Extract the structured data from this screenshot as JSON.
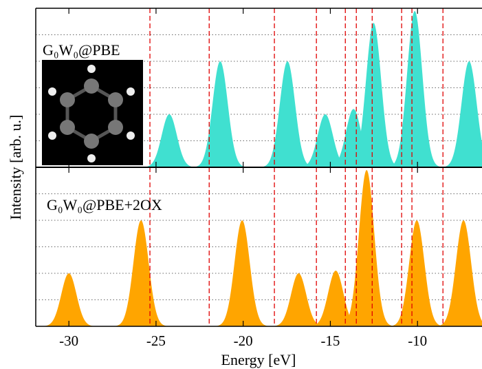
{
  "chart_data": [
    {
      "type": "peaks",
      "label": "G₀W₀@PBE",
      "color": "#40e0d0",
      "ylabel": "Intensity [arb. u.]",
      "x": [
        -24.24,
        -21.32,
        -17.46,
        -15.29,
        -13.67,
        -12.52,
        -10.16,
        -7.04
      ],
      "values": [
        2.0,
        4.0,
        4.0,
        2.0,
        2.2,
        5.45,
        5.9,
        4.0
      ],
      "ylim": [
        0,
        6
      ],
      "yticks": [
        1,
        2,
        3,
        4,
        5
      ],
      "grid": true
    },
    {
      "type": "peaks",
      "label": "G₀W₀@PBE+2OX",
      "color": "#ffa500",
      "xlabel": "Energy [eV]",
      "x": [
        -30.0,
        -25.86,
        -20.06,
        -16.82,
        -14.69,
        -12.92,
        -10.04,
        -7.36
      ],
      "values": [
        2.0,
        4.0,
        4.0,
        2.0,
        2.1,
        5.9,
        4.0,
        4.0
      ],
      "ylim": [
        0,
        6
      ],
      "yticks": [
        1,
        2,
        3,
        4,
        5
      ],
      "grid": true,
      "xlim": [
        -31.9,
        -6.3
      ],
      "xticks": [
        -30,
        -25,
        -20,
        -15,
        -10
      ]
    }
  ],
  "reference_lines": {
    "color": "#e00000",
    "x": [
      -25.35,
      -21.95,
      -18.21,
      -15.8,
      -14.14,
      -13.51,
      -12.6,
      -10.91,
      -10.32,
      -8.54
    ]
  }
}
